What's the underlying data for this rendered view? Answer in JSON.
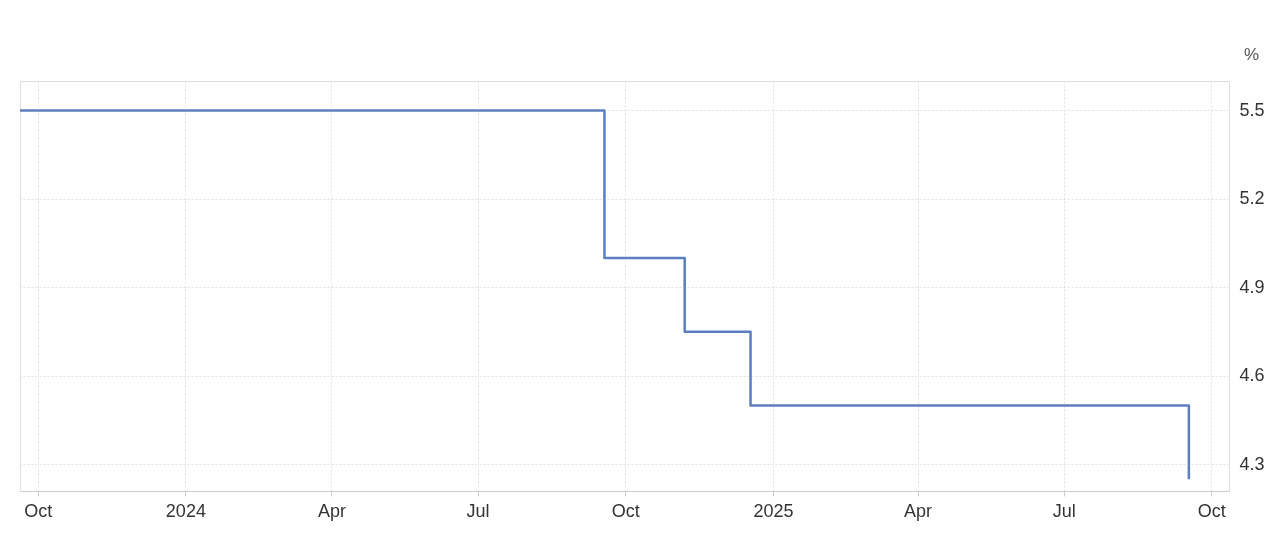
{
  "chart_data": {
    "type": "step",
    "ylabel": "%",
    "series": [
      {
        "color": "#5b7fc0",
        "x": [
          "2023-09-20",
          "2024-09-18",
          "2024-11-07",
          "2024-12-18",
          "2025-09-17"
        ],
        "values": [
          5.5,
          5.0,
          4.75,
          4.5,
          4.25
        ]
      }
    ],
    "xlim": [
      "2023-09-20",
      "2025-10-12"
    ],
    "xticks": [
      {
        "value": "2023-10-01",
        "label": "Oct"
      },
      {
        "value": "2024-01-01",
        "label": "2024"
      },
      {
        "value": "2024-04-01",
        "label": "Apr"
      },
      {
        "value": "2024-07-01",
        "label": "Jul"
      },
      {
        "value": "2024-10-01",
        "label": "Oct"
      },
      {
        "value": "2025-01-01",
        "label": "2025"
      },
      {
        "value": "2025-04-01",
        "label": "Apr"
      },
      {
        "value": "2025-07-01",
        "label": "Jul"
      },
      {
        "value": "2025-10-01",
        "label": "Oct"
      }
    ],
    "ylim": [
      4.21,
      5.6
    ],
    "yticks": [
      4.3,
      4.6,
      4.9,
      5.2,
      5.5
    ],
    "grid": true,
    "line_style": "solid",
    "marker": "none"
  }
}
